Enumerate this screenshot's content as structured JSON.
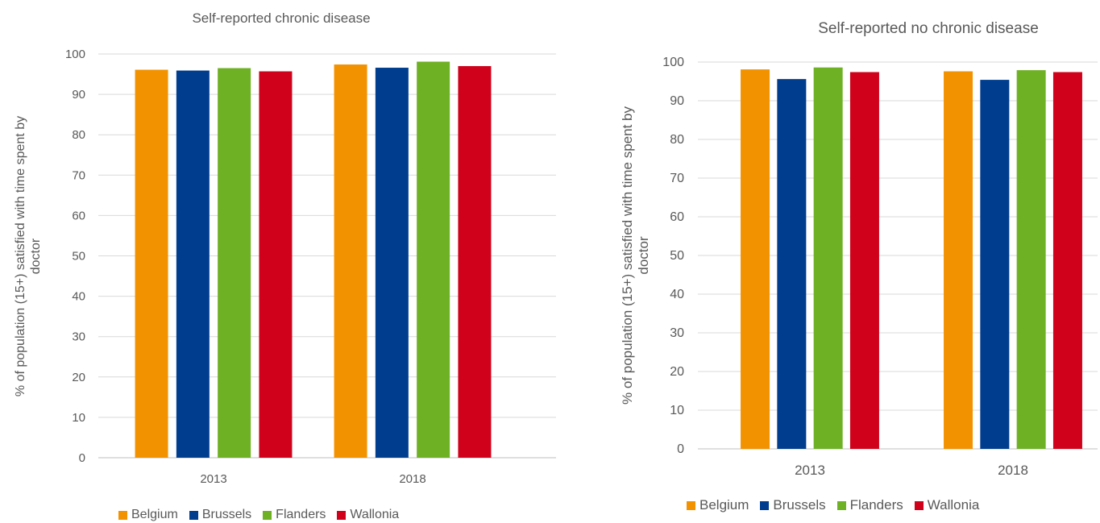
{
  "chart_data": [
    {
      "type": "bar",
      "title": "Self-reported chronic disease",
      "ylabel": "% of population (15+) satisfied with time spent by doctor",
      "xlabel": "",
      "categories": [
        "2013",
        "2018"
      ],
      "ylim": [
        0,
        100
      ],
      "yticks": [
        0,
        10,
        20,
        30,
        40,
        50,
        60,
        70,
        80,
        90,
        100
      ],
      "grid": true,
      "legend_position": "bottom",
      "series": [
        {
          "name": "Belgium",
          "color": "#F39200",
          "values": [
            96.1,
            97.4
          ]
        },
        {
          "name": "Brussels",
          "color": "#003D8F",
          "values": [
            95.9,
            96.6
          ]
        },
        {
          "name": "Flanders",
          "color": "#6FB125",
          "values": [
            96.5,
            98.1
          ]
        },
        {
          "name": "Wallonia",
          "color": "#D0021B",
          "values": [
            95.7,
            97.0
          ]
        }
      ]
    },
    {
      "type": "bar",
      "title": "Self-reported no chronic disease",
      "ylabel": "% of population (15+) satisfied with time spent by doctor",
      "xlabel": "",
      "categories": [
        "2013",
        "2018"
      ],
      "ylim": [
        0,
        100
      ],
      "yticks": [
        0,
        10,
        20,
        30,
        40,
        50,
        60,
        70,
        80,
        90,
        100
      ],
      "grid": true,
      "legend_position": "bottom",
      "series": [
        {
          "name": "Belgium",
          "color": "#F39200",
          "values": [
            98.1,
            97.6
          ]
        },
        {
          "name": "Brussels",
          "color": "#003D8F",
          "values": [
            95.6,
            95.4
          ]
        },
        {
          "name": "Flanders",
          "color": "#6FB125",
          "values": [
            98.6,
            97.9
          ]
        },
        {
          "name": "Wallonia",
          "color": "#D0021B",
          "values": [
            97.4,
            97.4
          ]
        }
      ]
    }
  ]
}
